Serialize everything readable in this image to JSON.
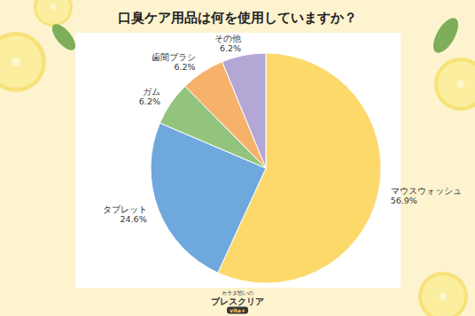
{
  "chart_data": {
    "type": "pie",
    "title": "口臭ケア用品は何を使用していますか？",
    "categories": [
      "マウスウォッシュ",
      "タブレット",
      "ガム",
      "歯間ブラシ",
      "その他"
    ],
    "values": [
      56.9,
      24.6,
      6.2,
      6.2,
      6.2
    ],
    "value_labels": [
      "56.9%",
      "24.6%",
      "6.2%",
      "6.2%",
      "6.2%"
    ],
    "colors": [
      "#fcd96a",
      "#6fa8dc",
      "#93c47d",
      "#f6b26b",
      "#b4a7d6"
    ],
    "data_labels": true,
    "annotations": [
      "カラダ想いの",
      "ブレスクリア",
      "vita+"
    ]
  }
}
